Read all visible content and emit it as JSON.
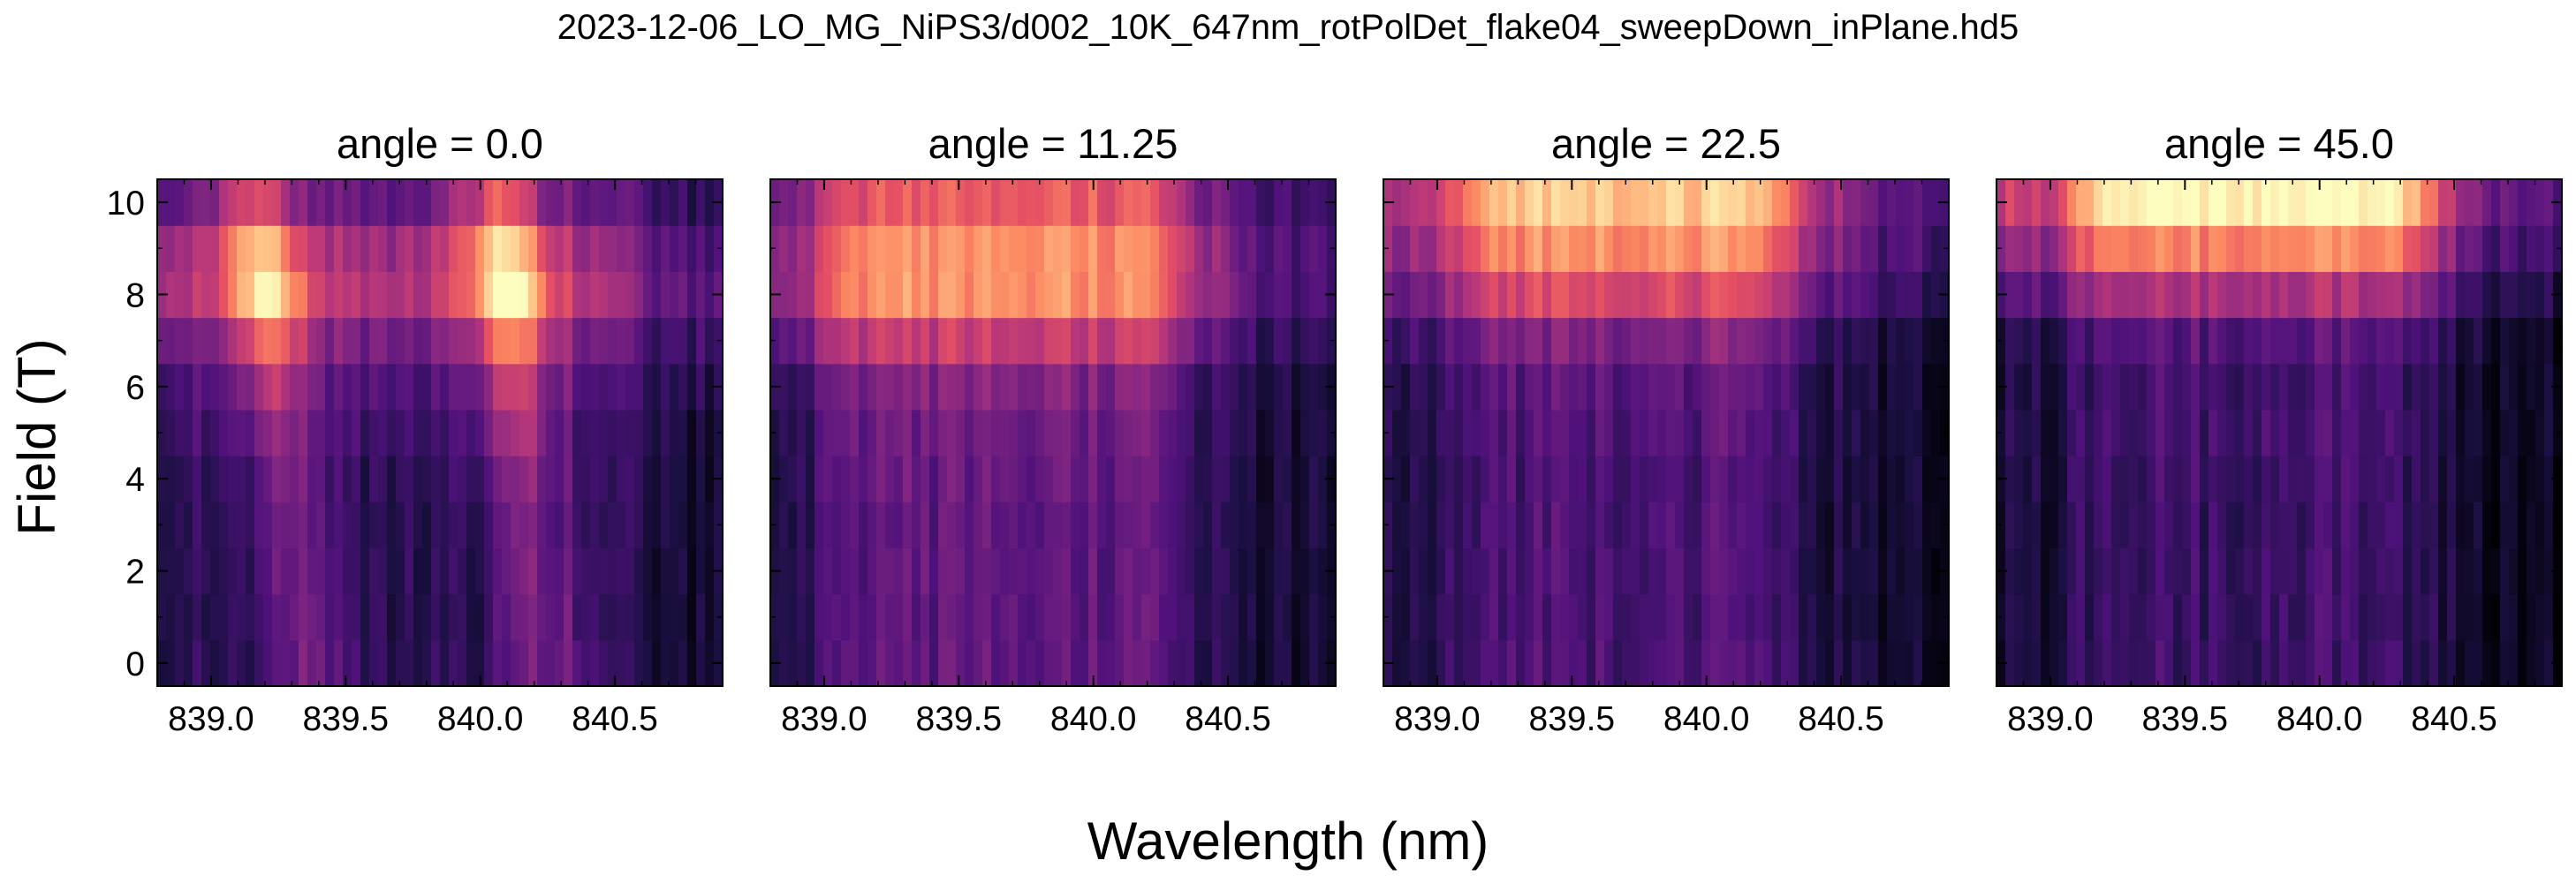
{
  "figure": {
    "title": "2023-12-06_LO_MG_NiPS3/d002_10K_647nm_rotPolDet_flake04_sweepDown_inPlane.hd5",
    "xlabel": "Wavelength (nm)",
    "ylabel": "Field (T)"
  },
  "chart_data": [
    {
      "type": "heatmap",
      "title": "angle = 0.0",
      "xlabel": "Wavelength (nm)",
      "ylabel": "Field (T)",
      "xlim": [
        838.8,
        840.9
      ],
      "ylim": [
        -0.5,
        10.5
      ],
      "x_ticks": [
        839.0,
        839.5,
        840.0,
        840.5
      ],
      "x_tick_labels": [
        "839.0",
        "839.5",
        "840.0",
        "840.5"
      ],
      "y_ticks": [
        0,
        2,
        4,
        6,
        8,
        10
      ],
      "y_tick_labels": [
        "0",
        "2",
        "4",
        "6",
        "8",
        "10"
      ],
      "colormap": "magma",
      "grid": false,
      "field_T": [
        0,
        1,
        2,
        3,
        4,
        5,
        6,
        7,
        8,
        9,
        10
      ],
      "bright_peaks_nm": [
        839.2,
        840.1
      ],
      "peak_intensity_by_field": [
        0.3,
        0.3,
        0.3,
        0.3,
        0.32,
        0.38,
        0.45,
        0.62,
        0.88,
        0.8,
        0.55
      ]
    },
    {
      "type": "heatmap",
      "title": "angle = 11.25",
      "xlabel": "Wavelength (nm)",
      "ylabel": "Field (T)",
      "xlim": [
        838.8,
        840.9
      ],
      "ylim": [
        -0.5,
        10.5
      ],
      "x_ticks": [
        839.0,
        839.5,
        840.0,
        840.5
      ],
      "x_tick_labels": [
        "839.0",
        "839.5",
        "840.0",
        "840.5"
      ],
      "y_ticks": [
        0,
        2,
        4,
        6,
        8,
        10
      ],
      "y_tick_labels": [
        "0",
        "2",
        "4",
        "6",
        "8",
        "10"
      ],
      "colormap": "magma",
      "grid": false,
      "field_T": [
        0,
        1,
        2,
        3,
        4,
        5,
        6,
        7,
        8,
        9,
        10
      ],
      "bright_band_nm": [
        839.0,
        840.3
      ],
      "peak_intensity_by_field": [
        0.28,
        0.28,
        0.28,
        0.28,
        0.3,
        0.32,
        0.36,
        0.52,
        0.74,
        0.74,
        0.62
      ]
    },
    {
      "type": "heatmap",
      "title": "angle = 22.5",
      "xlabel": "Wavelength (nm)",
      "ylabel": "Field (T)",
      "xlim": [
        838.8,
        840.9
      ],
      "ylim": [
        -0.5,
        10.5
      ],
      "x_ticks": [
        839.0,
        839.5,
        840.0,
        840.5
      ],
      "x_tick_labels": [
        "839.0",
        "839.5",
        "840.0",
        "840.5"
      ],
      "y_ticks": [
        0,
        2,
        4,
        6,
        8,
        10
      ],
      "y_tick_labels": [
        "0",
        "2",
        "4",
        "6",
        "8",
        "10"
      ],
      "colormap": "magma",
      "grid": false,
      "field_T": [
        0,
        1,
        2,
        3,
        4,
        5,
        6,
        7,
        8,
        9,
        10
      ],
      "bright_band_nm": [
        839.1,
        840.3
      ],
      "peak_intensity_by_field": [
        0.24,
        0.24,
        0.24,
        0.24,
        0.24,
        0.26,
        0.28,
        0.36,
        0.58,
        0.74,
        0.86
      ]
    },
    {
      "type": "heatmap",
      "title": "angle = 45.0",
      "xlabel": "Wavelength (nm)",
      "ylabel": "Field (T)",
      "xlim": [
        838.8,
        840.9
      ],
      "ylim": [
        -0.5,
        10.5
      ],
      "x_ticks": [
        839.0,
        839.5,
        840.0,
        840.5
      ],
      "x_tick_labels": [
        "839.0",
        "839.5",
        "840.0",
        "840.5"
      ],
      "y_ticks": [
        0,
        2,
        4,
        6,
        8,
        10
      ],
      "y_tick_labels": [
        "0",
        "2",
        "4",
        "6",
        "8",
        "10"
      ],
      "colormap": "magma",
      "grid": false,
      "field_T": [
        0,
        1,
        2,
        3,
        4,
        5,
        6,
        7,
        8,
        9,
        10
      ],
      "bright_band_nm": [
        839.1,
        840.4
      ],
      "peak_intensity_by_field": [
        0.2,
        0.2,
        0.2,
        0.2,
        0.2,
        0.22,
        0.22,
        0.26,
        0.46,
        0.72,
        0.96
      ]
    }
  ]
}
